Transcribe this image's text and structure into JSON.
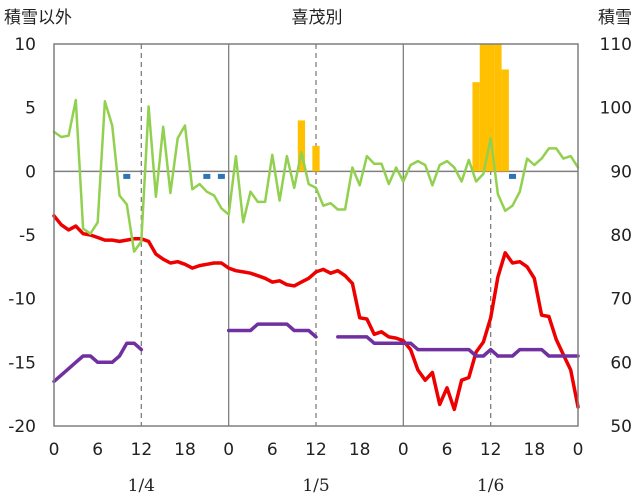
{
  "chart_data": {
    "type": "line",
    "title": "喜茂別",
    "left_axis_label": "積雪以外",
    "right_axis_label": "積雪",
    "left_ylim": [
      -20,
      10
    ],
    "left_yticks": [
      "10",
      "5",
      "0",
      "-5",
      "-10",
      "-15",
      "-20"
    ],
    "right_ylim": [
      50,
      110
    ],
    "right_yticks": [
      "110",
      "100",
      "90",
      "80",
      "70",
      "60",
      "50"
    ],
    "x_range_hours": [
      0,
      72
    ],
    "x_tick_labels": [
      "0",
      "6",
      "12",
      "18",
      "0",
      "6",
      "12",
      "18",
      "0",
      "6",
      "12",
      "18",
      "0"
    ],
    "date_labels": [
      "1/4",
      "1/5",
      "1/6"
    ],
    "grid": {
      "vertical_dashed_at_hours": [
        12,
        36,
        60
      ],
      "vertical_solid_at_hours": [
        24,
        48
      ],
      "zero_line": true
    },
    "series": [
      {
        "key": "temperature",
        "color": "#ee0000",
        "axis": "left",
        "style": "line",
        "x": [
          0,
          1,
          2,
          3,
          4,
          5,
          6,
          7,
          8,
          9,
          10,
          11,
          12,
          13,
          14,
          15,
          16,
          17,
          18,
          19,
          20,
          21,
          22,
          23,
          24,
          25,
          26,
          27,
          28,
          29,
          30,
          31,
          32,
          33,
          34,
          35,
          36,
          37,
          38,
          39,
          40,
          41,
          42,
          43,
          44,
          45,
          46,
          47,
          48,
          49,
          50,
          51,
          52,
          53,
          54,
          55,
          56,
          57,
          58,
          59,
          60,
          61,
          62,
          63,
          64,
          65,
          66,
          67,
          68,
          69,
          70,
          71,
          72
        ],
        "y": [
          -3.5,
          -4.2,
          -4.6,
          -4.3,
          -4.9,
          -5.0,
          -5.2,
          -5.4,
          -5.4,
          -5.5,
          -5.4,
          -5.3,
          -5.3,
          -5.5,
          -6.5,
          -6.9,
          -7.2,
          -7.1,
          -7.3,
          -7.6,
          -7.4,
          -7.3,
          -7.2,
          -7.2,
          -7.6,
          -7.8,
          -7.9,
          -8.0,
          -8.2,
          -8.4,
          -8.7,
          -8.6,
          -8.9,
          -9.0,
          -8.7,
          -8.4,
          -7.9,
          -7.7,
          -8.0,
          -7.8,
          -8.2,
          -8.8,
          -11.5,
          -11.6,
          -12.8,
          -12.6,
          -13.0,
          -13.1,
          -13.3,
          -14.0,
          -15.6,
          -16.4,
          -15.8,
          -18.3,
          -17.0,
          -18.7,
          -16.4,
          -16.2,
          -14.2,
          -13.4,
          -11.5,
          -8.3,
          -6.4,
          -7.2,
          -7.1,
          -7.5,
          -8.4,
          -11.3,
          -11.4,
          -13.2,
          -14.4,
          -15.6,
          -18.5
        ]
      },
      {
        "key": "wind",
        "color": "#92d050",
        "axis": "left",
        "style": "line",
        "x": [
          0,
          1,
          2,
          3,
          4,
          5,
          6,
          7,
          8,
          9,
          10,
          11,
          12,
          13,
          14,
          15,
          16,
          17,
          18,
          19,
          20,
          21,
          22,
          23,
          24,
          25,
          26,
          27,
          28,
          29,
          30,
          31,
          32,
          33,
          34,
          35,
          36,
          37,
          38,
          39,
          40,
          41,
          42,
          43,
          44,
          45,
          46,
          47,
          48,
          49,
          50,
          51,
          52,
          53,
          54,
          55,
          56,
          57,
          58,
          59,
          60,
          61,
          62,
          63,
          64,
          65,
          66,
          67,
          68,
          69,
          70,
          71,
          72
        ],
        "y": [
          3.1,
          2.7,
          2.8,
          5.6,
          -4.5,
          -4.9,
          -4.0,
          5.5,
          3.6,
          -1.9,
          -2.6,
          -6.3,
          -5.5,
          5.1,
          -2.0,
          3.5,
          -1.7,
          2.6,
          3.6,
          -1.4,
          -1.0,
          -1.6,
          -1.9,
          -2.9,
          -3.4,
          1.2,
          -4.0,
          -1.6,
          -2.4,
          -2.4,
          1.3,
          -2.3,
          1.2,
          -1.3,
          1.5,
          -1.0,
          -1.3,
          -2.7,
          -2.5,
          -3.0,
          -3.0,
          0.3,
          -1.1,
          1.2,
          0.6,
          0.6,
          -1.0,
          0.3,
          -0.8,
          0.5,
          0.8,
          0.5,
          -1.1,
          0.5,
          0.8,
          0.3,
          -0.8,
          0.9,
          -0.8,
          -0.2,
          2.6,
          -1.8,
          -3.1,
          -2.7,
          -1.6,
          1.0,
          0.5,
          1.0,
          1.8,
          1.8,
          1.0,
          1.2,
          0.3
        ]
      },
      {
        "key": "snow_depth",
        "color": "#7030a0",
        "axis": "right",
        "style": "line_segments",
        "segments": [
          {
            "x": [
              0,
              1,
              2,
              3,
              4,
              5,
              6,
              7,
              8,
              9,
              10,
              11,
              12
            ],
            "y": [
              57,
              58,
              59,
              60,
              61,
              61,
              60,
              60,
              60,
              61,
              63,
              63,
              62
            ]
          },
          {
            "x": [
              24,
              25,
              26,
              27,
              28,
              29,
              30,
              31,
              32,
              33,
              34,
              35,
              36
            ],
            "y": [
              65,
              65,
              65,
              65,
              66,
              66,
              66,
              66,
              66,
              65,
              65,
              65,
              64
            ]
          },
          {
            "x": [
              39,
              40,
              41,
              42,
              43,
              44,
              45,
              46,
              47,
              48,
              49,
              50,
              51,
              52,
              53,
              54,
              55,
              56,
              57,
              58,
              59,
              60,
              61
            ],
            "y": [
              64,
              64,
              64,
              64,
              64,
              63,
              63,
              63,
              63,
              63,
              63,
              62,
              62,
              62,
              62,
              62,
              62,
              62,
              62,
              61,
              61,
              62,
              61
            ]
          },
          {
            "x": [
              61,
              62,
              63,
              64,
              65,
              66,
              67,
              68,
              69,
              70,
              71,
              72
            ],
            "y": [
              61,
              61,
              61,
              62,
              62,
              62,
              62,
              61,
              61,
              61,
              61,
              61
            ]
          }
        ]
      },
      {
        "key": "precipitation",
        "color": "#ffc000",
        "axis": "left",
        "style": "bars",
        "x": [
          34,
          36,
          58,
          59,
          60,
          61,
          62
        ],
        "y": [
          4.0,
          2.0,
          7.0,
          10.0,
          10.0,
          10.0,
          8.0
        ]
      },
      {
        "key": "sunshine",
        "color": "#2e75b6",
        "axis": "left",
        "style": "markers",
        "x": [
          10,
          21,
          23,
          63
        ],
        "y": [
          -0.4,
          -0.4,
          -0.4,
          -0.4
        ]
      }
    ]
  }
}
